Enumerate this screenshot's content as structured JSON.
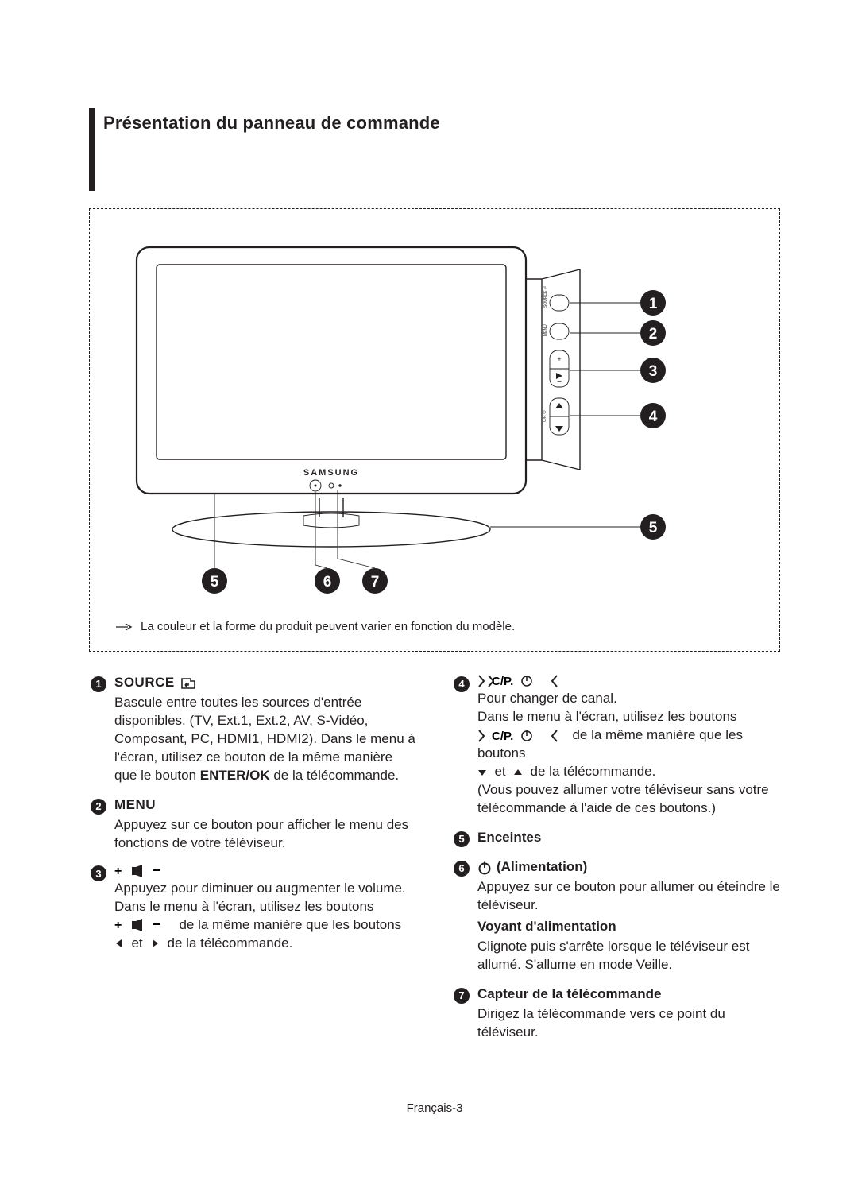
{
  "title": "Présentation du panneau de commande",
  "note": "La couleur et la forme du produit peuvent varier en fonction du modèle.",
  "colors": {
    "ink": "#231f20",
    "thin": "#595959",
    "diagram_stroke": "#231f20",
    "dash": "#231f20"
  },
  "diagram": {
    "brand_text": "SAMSUNG",
    "callouts_right": [
      "1",
      "2",
      "3",
      "4",
      "5"
    ],
    "callouts_bottom": [
      "5",
      "6",
      "7"
    ],
    "panel_labels": [
      "SOURCE",
      "MENU",
      "+",
      "−",
      "C/P."
    ]
  },
  "items_left": [
    {
      "n": "1",
      "head_upper": "SOURCE",
      "head_icon": "enter-icon",
      "desc_html": "Bascule entre toutes les sources d'entrée disponibles. (TV, Ext.1, Ext.2, AV, S-Vidéo, Composant, PC, HDMI1, HDMI2). Dans le menu à l'écran, utilisez ce bouton de la même manière que le bouton <b>ENTER/OK</b> de la télécommande."
    },
    {
      "n": "2",
      "head_upper": "MENU",
      "desc_html": "Appuyez sur ce bouton pour afficher le menu des fonctions de votre téléviseur."
    },
    {
      "n": "3",
      "head_icon_set": "plus-vol-minus",
      "desc_lines": [
        "Appuyez pour diminuer ou augmenter le volume.",
        "Dans le menu à l'écran, utilisez les boutons"
      ],
      "desc_line_with_sym_after": "de la même manière que les boutons",
      "desc_line_with_tri": "de la télécommande.",
      "tri_sep": "et"
    }
  ],
  "items_right": [
    {
      "n": "4",
      "head_icon_set": "cp-arrows",
      "desc_lines": [
        "Pour changer de canal.",
        "Dans le menu à l'écran, utilisez les boutons"
      ],
      "desc_line_with_sym_after": "de la même manière que les boutons",
      "desc_line_updown_after": "de la télécommande.",
      "updown_sep": "et",
      "desc_tail": "(Vous pouvez allumer votre téléviseur sans votre télécommande à l'aide de ces boutons.)"
    },
    {
      "n": "5",
      "head_bold": "Enceintes"
    },
    {
      "n": "6",
      "head_icon": "power-icon",
      "head_bold_after": "(Alimentation)",
      "desc_html": "Appuyez sur ce bouton pour allumer ou éteindre le téléviseur.",
      "sub_head": "Voyant d'alimentation",
      "sub_desc": "Clignote puis s'arrête lorsque le téléviseur est allumé. S'allume en mode Veille."
    },
    {
      "n": "7",
      "head_bold": "Capteur de la télécommande",
      "desc_html": "Dirigez la télécommande vers ce point du téléviseur."
    }
  ],
  "footer": "Français-3"
}
